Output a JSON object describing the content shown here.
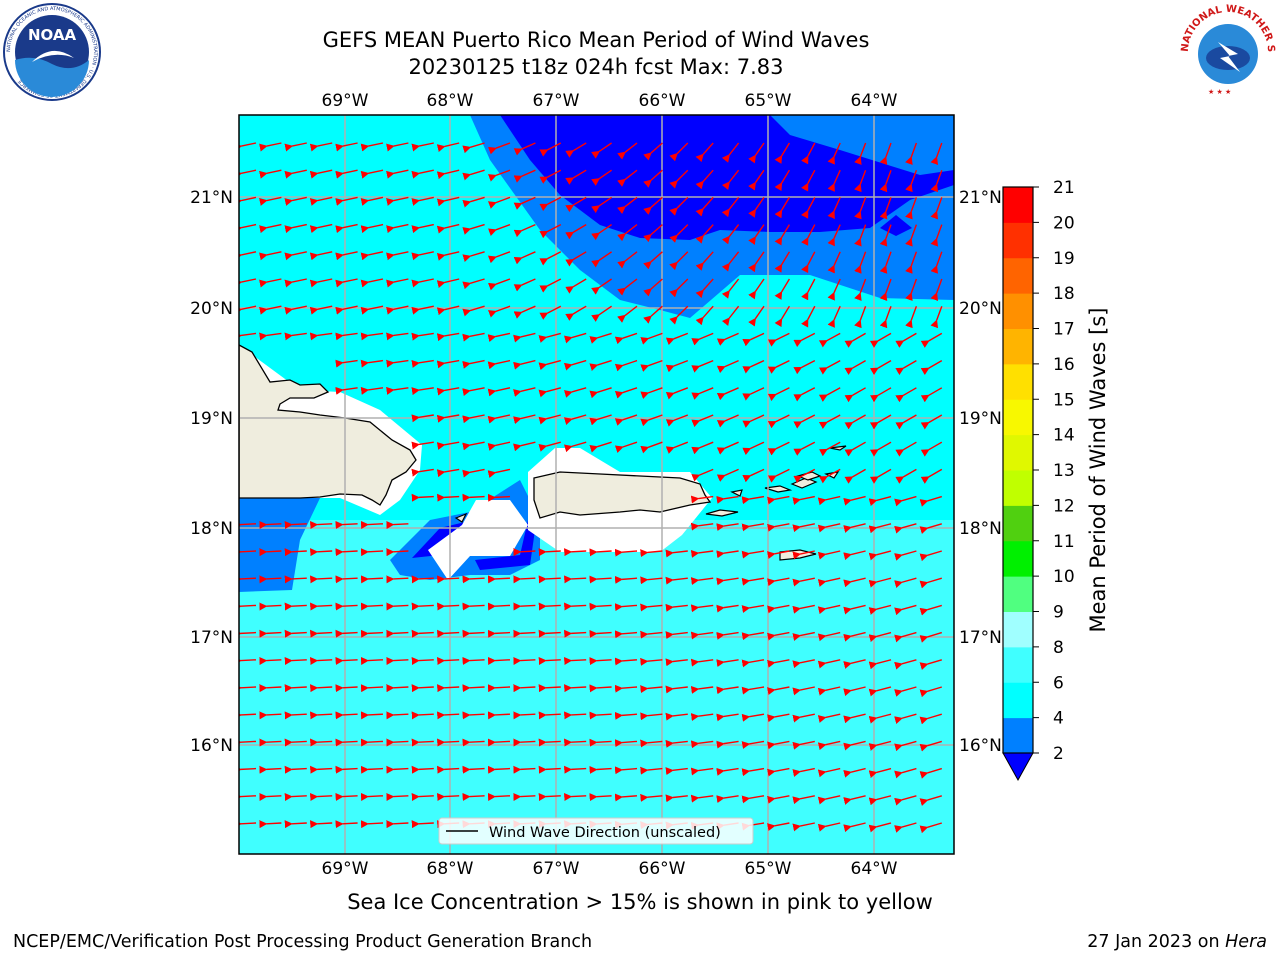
{
  "header": {
    "title_line1": "GEFS MEAN Puerto Rico Mean Period of Wind Waves",
    "title_line2": "20230125 t18z 024h fcst   Max: 7.83"
  },
  "logos": {
    "left": "noaa-logo",
    "left_text": "NOAA",
    "left_ring_text": "NATIONAL OCEANIC AND ATMOSPHERIC ADMINISTRATION · U.S. DEPARTMENT OF COMMERCE",
    "right": "national-weather-service-logo",
    "right_ring_text": "NATIONAL WEATHER SERVICE"
  },
  "map": {
    "lon_ticks": [
      "69°W",
      "68°W",
      "67°W",
      "66°W",
      "65°W",
      "64°W"
    ],
    "lat_ticks": [
      "21°N",
      "20°N",
      "19°N",
      "18°N",
      "17°N",
      "16°N"
    ],
    "grid": true,
    "legend": {
      "label": "Wind Wave Direction (unscaled)",
      "placement": "bottom-center"
    },
    "colors": {
      "ocean_base": "#00ffff",
      "land": "#efedde",
      "arrows": "#ff0000",
      "gridlines": "#b0b0b0"
    }
  },
  "colorbar": {
    "label": "Mean Period of Wind Waves [s]",
    "ticks": [
      "2",
      "4",
      "6",
      "8",
      "9",
      "10",
      "11",
      "12",
      "13",
      "14",
      "15",
      "16",
      "17",
      "18",
      "19",
      "20",
      "21"
    ],
    "bins": [
      {
        "from": 2,
        "to": 4,
        "color": "#0080ff"
      },
      {
        "from": 4,
        "to": 6,
        "color": "#00ffff"
      },
      {
        "from": 6,
        "to": 8,
        "color": "#40ffff"
      },
      {
        "from": 8,
        "to": 9,
        "color": "#a0ffff"
      },
      {
        "from": 9,
        "to": 10,
        "color": "#50ff80"
      },
      {
        "from": 10,
        "to": 11,
        "color": "#00f000"
      },
      {
        "from": 11,
        "to": 12,
        "color": "#50d010"
      },
      {
        "from": 12,
        "to": 13,
        "color": "#c0ff00"
      },
      {
        "from": 13,
        "to": 14,
        "color": "#e0f800"
      },
      {
        "from": 14,
        "to": 15,
        "color": "#f8f800"
      },
      {
        "from": 15,
        "to": 16,
        "color": "#ffe000"
      },
      {
        "from": 16,
        "to": 17,
        "color": "#ffb400"
      },
      {
        "from": 17,
        "to": 18,
        "color": "#ff9000"
      },
      {
        "from": 18,
        "to": 19,
        "color": "#ff6400"
      },
      {
        "from": 19,
        "to": 20,
        "color": "#ff3000"
      },
      {
        "from": 20,
        "to": 21,
        "color": "#ff0000"
      }
    ],
    "under_color": "#0000ff"
  },
  "footer": {
    "note": "Sea Ice Concentration > 15% is shown in pink to yellow",
    "org": "NCEP/EMC/Verification Post Processing Product Generation Branch",
    "date": "27 Jan 2023 on ",
    "host": "Hera"
  }
}
